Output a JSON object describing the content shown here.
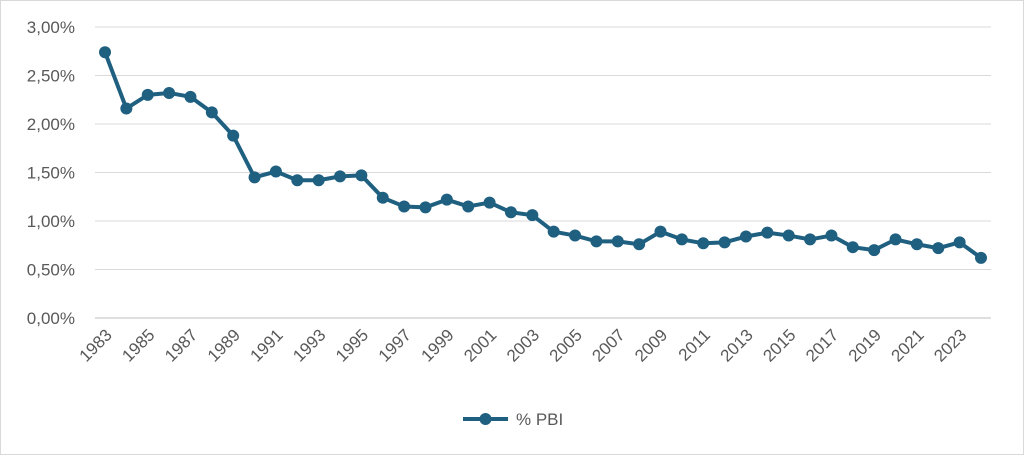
{
  "chart_data": {
    "type": "line",
    "title": "",
    "xlabel": "",
    "ylabel": "",
    "ylim": [
      0,
      3
    ],
    "grid": true,
    "legend_position": "bottom",
    "y_ticks": [
      "0,00%",
      "0,50%",
      "1,00%",
      "1,50%",
      "2,00%",
      "2,50%",
      "3,00%"
    ],
    "x_tick_labels": [
      "1983",
      "1985",
      "1987",
      "1989",
      "1991",
      "1993",
      "1995",
      "1997",
      "1999",
      "2001",
      "2003",
      "2005",
      "2007",
      "2009",
      "2011",
      "2013",
      "2015",
      "2017",
      "2019",
      "2021",
      "2023"
    ],
    "x": [
      1983,
      1984,
      1985,
      1986,
      1987,
      1988,
      1989,
      1990,
      1991,
      1992,
      1993,
      1994,
      1995,
      1996,
      1997,
      1998,
      1999,
      2000,
      2001,
      2002,
      2003,
      2004,
      2005,
      2006,
      2007,
      2008,
      2009,
      2010,
      2011,
      2012,
      2013,
      2014,
      2015,
      2016,
      2017,
      2018,
      2019,
      2020,
      2021,
      2022,
      2023,
      2024
    ],
    "series": [
      {
        "name": "% PBI",
        "color": "#1f5f80",
        "values": [
          2.74,
          2.16,
          2.3,
          2.32,
          2.28,
          2.12,
          1.88,
          1.45,
          1.51,
          1.42,
          1.42,
          1.46,
          1.47,
          1.24,
          1.15,
          1.14,
          1.22,
          1.15,
          1.19,
          1.09,
          1.06,
          0.89,
          0.85,
          0.79,
          0.79,
          0.76,
          0.89,
          0.81,
          0.77,
          0.78,
          0.84,
          0.88,
          0.85,
          0.81,
          0.85,
          0.73,
          0.7,
          0.81,
          0.76,
          0.72,
          0.78,
          0.62
        ]
      }
    ]
  }
}
